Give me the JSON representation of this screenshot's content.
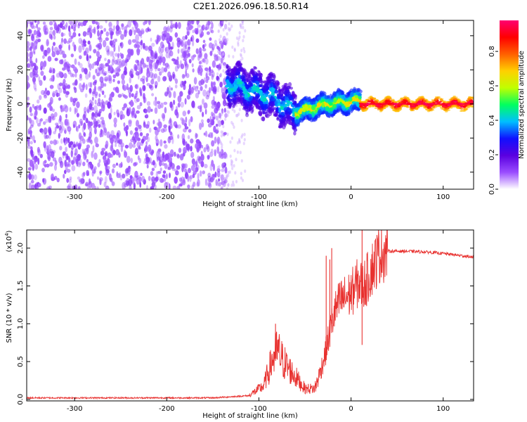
{
  "title": "C2E1.2026.096.18.50.R14",
  "chart_data": [
    {
      "type": "heatmap",
      "xlabel": "Height of straight line (km)",
      "ylabel": "Frequency (Hz)",
      "xlim": [
        -352,
        133
      ],
      "ylim": [
        -50,
        49
      ],
      "xticks": [
        -300,
        -200,
        -100,
        0,
        100
      ],
      "yticks": [
        -40,
        -20,
        0,
        20,
        40
      ],
      "grid": false,
      "colorbar": {
        "label": "Normalized spectral amplitude",
        "range": [
          0,
          0.98
        ],
        "ticks": [
          0.0,
          0.2,
          0.4,
          0.6,
          0.8
        ],
        "colormap": "rainbow (white-purple-blue-cyan-green-yellow-red-magenta)",
        "stops": [
          "#ffffff",
          "#9a4dff",
          "#5a00e0",
          "#1010ff",
          "#00bfff",
          "#00ff60",
          "#c0ff00",
          "#ffd000",
          "#ff6000",
          "#ff0000",
          "#ff0070"
        ]
      },
      "regions": [
        {
          "x_range": [
            -352,
            -135
          ],
          "description": "noise",
          "freq_range": [
            -50,
            49
          ],
          "amplitude": [
            0.0,
            0.15
          ]
        },
        {
          "x_range": [
            -135,
            -60
          ],
          "center_freq": [
            12,
            8,
            4,
            -5
          ],
          "spread_hz": 12,
          "amplitude": [
            0.2,
            0.45
          ]
        },
        {
          "x_range": [
            -60,
            10
          ],
          "center_freq": [
            -5,
            0,
            2
          ],
          "spread_hz": 6,
          "amplitude": [
            0.3,
            0.7
          ]
        },
        {
          "x_range": [
            10,
            133
          ],
          "center_freq": [
            0,
            0,
            0
          ],
          "spread_hz": 3,
          "amplitude": [
            0.7,
            0.98
          ]
        }
      ]
    },
    {
      "type": "line",
      "xlabel": "Height of straight line (km)",
      "ylabel": "SNR (10 * v/v)",
      "yscale_label": "(x10^4)",
      "xlim": [
        -352,
        133
      ],
      "ylim": [
        -0.02,
        2.24
      ],
      "xticks": [
        -300,
        -200,
        -100,
        0,
        100
      ],
      "yticks": [
        0.0,
        0.5,
        1.0,
        1.5,
        2.0
      ],
      "grid": false,
      "series": [
        {
          "color": "#e8312f",
          "x": [
            -352,
            -250,
            -150,
            -110,
            -95,
            -85,
            -80,
            -75,
            -68,
            -60,
            -50,
            -40,
            -35,
            -28,
            -22,
            -18,
            -12,
            -6,
            0,
            8,
            12,
            16,
            22,
            32,
            40,
            60,
            80,
            100,
            120,
            133
          ],
          "y": [
            0.02,
            0.02,
            0.02,
            0.05,
            0.15,
            0.45,
            0.55,
            0.45,
            0.35,
            0.25,
            0.12,
            0.12,
            0.3,
            0.6,
            0.95,
            1.15,
            1.3,
            1.35,
            1.4,
            1.55,
            1.5,
            1.55,
            1.72,
            1.95,
            1.96,
            1.96,
            1.95,
            1.93,
            1.9,
            1.88
          ],
          "spikes": [
            {
              "x": -82,
              "y": 1.0
            },
            {
              "x": -27,
              "y": 1.9
            },
            {
              "x": -23,
              "y": 1.85
            },
            {
              "x": -21,
              "y": 2.0
            },
            {
              "x": 12,
              "y": 2.24
            },
            {
              "x": 12,
              "y": 0.72
            }
          ]
        }
      ]
    }
  ]
}
